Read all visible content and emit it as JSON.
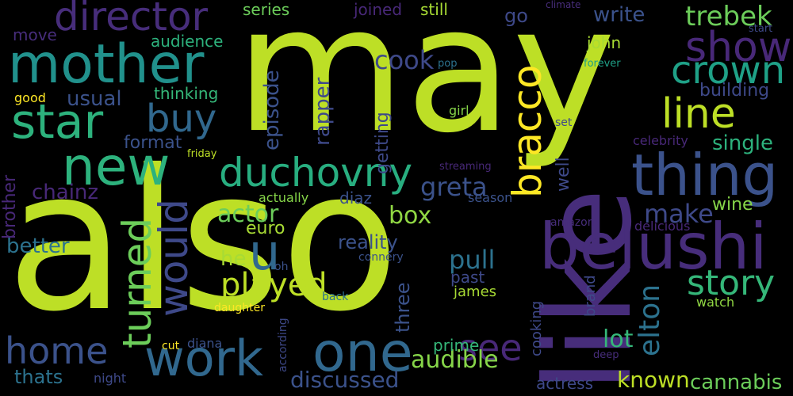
{
  "words": [
    {
      "text": "may",
      "color": "#bddf26"
    },
    {
      "text": "also",
      "color": "#bddf26"
    },
    {
      "text": "like",
      "color": "#472d7b"
    },
    {
      "text": "belushi",
      "color": "#472d7b"
    },
    {
      "text": "thing",
      "color": "#3b528b"
    },
    {
      "text": "mother",
      "color": "#21918c"
    },
    {
      "text": "new",
      "color": "#2db27d"
    },
    {
      "text": "star",
      "color": "#2db27d"
    },
    {
      "text": "one",
      "color": "#31688e"
    },
    {
      "text": "work",
      "color": "#31688e"
    },
    {
      "text": "director",
      "color": "#472d7b"
    },
    {
      "text": "duchovny",
      "color": "#28ae80"
    },
    {
      "text": "show",
      "color": "#482878"
    },
    {
      "text": "crown",
      "color": "#1fa187"
    },
    {
      "text": "line",
      "color": "#bddf26"
    },
    {
      "text": "story",
      "color": "#35b779"
    },
    {
      "text": "would",
      "color": "#3e4989"
    },
    {
      "text": "turned",
      "color": "#6ccd5a"
    },
    {
      "text": "bracco",
      "color": "#fde725"
    },
    {
      "text": "home",
      "color": "#3b528b"
    },
    {
      "text": "buy",
      "color": "#31688e"
    },
    {
      "text": "u",
      "color": "#31688e"
    },
    {
      "text": "see",
      "color": "#482878"
    },
    {
      "text": "played",
      "color": "#bddf26"
    },
    {
      "text": "trebek",
      "color": "#6ccd5a"
    },
    {
      "text": "elton",
      "color": "#2c728e"
    },
    {
      "text": "greta",
      "color": "#3b528b"
    },
    {
      "text": "make",
      "color": "#3e4989"
    },
    {
      "text": "known",
      "color": "#bddf26"
    },
    {
      "text": "cannabis",
      "color": "#6ccd5a"
    },
    {
      "text": "audible",
      "color": "#86d549"
    },
    {
      "text": "actor",
      "color": "#6ccd5a"
    },
    {
      "text": "cook",
      "color": "#3e4989"
    },
    {
      "text": "pull",
      "color": "#2c728e"
    },
    {
      "text": "discussed",
      "color": "#3b528b"
    },
    {
      "text": "box",
      "color": "#90d743"
    },
    {
      "text": "lot",
      "color": "#35b779"
    },
    {
      "text": "single",
      "color": "#2db27d"
    },
    {
      "text": "write",
      "color": "#3b528b"
    },
    {
      "text": "episode",
      "color": "#3b528b"
    },
    {
      "text": "rapper",
      "color": "#3e4989"
    },
    {
      "text": "chainz",
      "color": "#482878"
    },
    {
      "text": "better",
      "color": "#2c728e"
    },
    {
      "text": "reality",
      "color": "#3b528b"
    },
    {
      "text": "format",
      "color": "#3b528b"
    },
    {
      "text": "usual",
      "color": "#3b528b"
    },
    {
      "text": "building",
      "color": "#3e4989"
    },
    {
      "text": "three",
      "color": "#3b528b"
    },
    {
      "text": "wine",
      "color": "#86d549"
    },
    {
      "text": "euro",
      "color": "#a8db34"
    },
    {
      "text": "he",
      "color": "#a8db34"
    },
    {
      "text": "thats",
      "color": "#2c728e"
    },
    {
      "text": "brother",
      "color": "#482878"
    },
    {
      "text": "getting",
      "color": "#3e4989"
    },
    {
      "text": "well",
      "color": "#3e4989"
    },
    {
      "text": "diaz",
      "color": "#3b528b"
    },
    {
      "text": "prime",
      "color": "#35b779"
    },
    {
      "text": "past",
      "color": "#3e4989"
    },
    {
      "text": "james",
      "color": "#a8db34"
    },
    {
      "text": "thinking",
      "color": "#35b779"
    },
    {
      "text": "audience",
      "color": "#2db27d"
    },
    {
      "text": "series",
      "color": "#6ccd5a"
    },
    {
      "text": "joined",
      "color": "#482878"
    },
    {
      "text": "still",
      "color": "#a8db34"
    },
    {
      "text": "move",
      "color": "#472d7b"
    },
    {
      "text": "go",
      "color": "#3e4989"
    },
    {
      "text": "john",
      "color": "#a8db34"
    },
    {
      "text": "brand",
      "color": "#3e4989"
    },
    {
      "text": "cooking",
      "color": "#3e4989"
    },
    {
      "text": "actress",
      "color": "#3e4989"
    },
    {
      "text": "diana",
      "color": "#3b528b"
    },
    {
      "text": "night",
      "color": "#3e4989"
    },
    {
      "text": "watch",
      "color": "#90d743"
    },
    {
      "text": "good",
      "color": "#fde725"
    },
    {
      "text": "girl",
      "color": "#86d549"
    },
    {
      "text": "set",
      "color": "#3e4989"
    },
    {
      "text": "celebrity",
      "color": "#482878"
    },
    {
      "text": "season",
      "color": "#3b528b"
    },
    {
      "text": "actually",
      "color": "#86d549"
    },
    {
      "text": "amazon",
      "color": "#472d7b"
    },
    {
      "text": "delicious",
      "color": "#482878"
    },
    {
      "text": "oh",
      "color": "#3b528b"
    },
    {
      "text": "connery",
      "color": "#3b528b"
    },
    {
      "text": "daughter",
      "color": "#fde725"
    },
    {
      "text": "back",
      "color": "#2c728e"
    },
    {
      "text": "according",
      "color": "#3e4989"
    },
    {
      "text": "cut",
      "color": "#fde725"
    },
    {
      "text": "deep",
      "color": "#472d7b"
    },
    {
      "text": "streaming",
      "color": "#482878"
    },
    {
      "text": "friday",
      "color": "#bddf26"
    },
    {
      "text": "pop",
      "color": "#2c728e"
    },
    {
      "text": "forever",
      "color": "#1fa187"
    },
    {
      "text": "climate",
      "color": "#472d7b"
    },
    {
      "text": "start",
      "color": "#3e4989"
    }
  ]
}
